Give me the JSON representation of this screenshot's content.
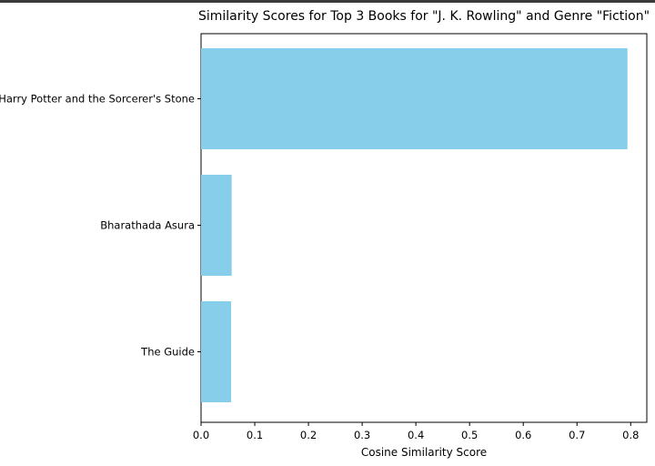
{
  "chart_data": {
    "type": "bar",
    "orientation": "horizontal",
    "title": "Similarity Scores for Top 3 Books for \"J. K. Rowling\" and Genre \"Fiction\"",
    "xlabel": "Cosine Similarity Score",
    "ylabel": "",
    "categories": [
      "Harry Potter and the Sorcerer's Stone",
      "Bharathada Asura",
      "The Guide"
    ],
    "values": [
      0.794,
      0.057,
      0.056
    ],
    "xlim": [
      0,
      0.83
    ],
    "xticks": [
      0.0,
      0.1,
      0.2,
      0.3,
      0.4,
      0.5,
      0.6,
      0.7,
      0.8
    ],
    "xtick_labels": [
      "0.0",
      "0.1",
      "0.2",
      "0.3",
      "0.4",
      "0.5",
      "0.6",
      "0.7",
      "0.8"
    ],
    "bar_color": "#87ceeb",
    "grid": false
  }
}
